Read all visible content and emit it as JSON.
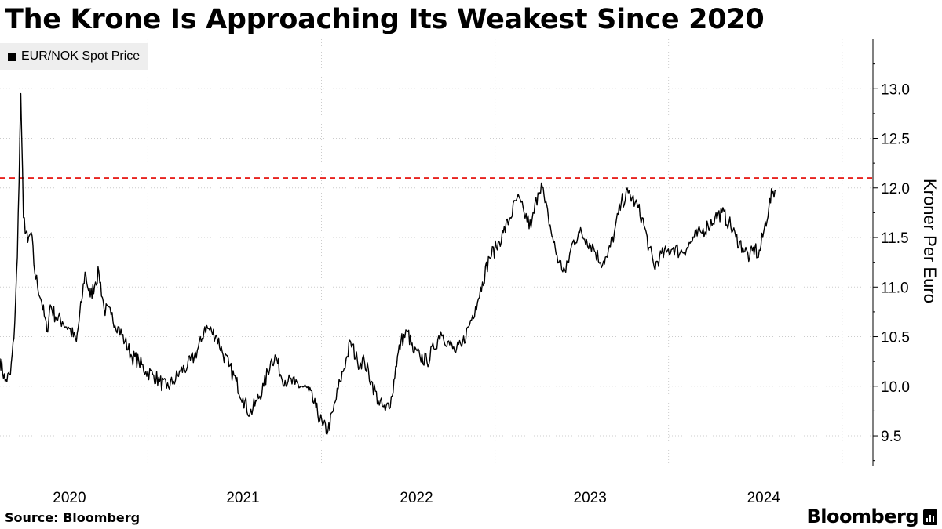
{
  "title": "The Krone Is Approaching Its Weakest Since 2020",
  "legend": "EUR/NOK Spot Price",
  "source": "Source: Bloomberg",
  "brand": "Bloomberg",
  "colors": {
    "line": "#000000",
    "reference": "#e8231f",
    "grid": "#cccccc",
    "legend_bg": "#eeeeee"
  },
  "chart_data": {
    "type": "line",
    "title": "The Krone Is Approaching Its Weakest Since 2020",
    "ylabel": "Kroner Per Euro",
    "xlabel": "",
    "ylim": [
      9.2,
      13.5
    ],
    "yticks": [
      9.5,
      10.0,
      10.5,
      11.0,
      11.5,
      12.0,
      12.5,
      13.0
    ],
    "x_range": [
      2019.6,
      2024.63
    ],
    "xticks": [
      {
        "label": "2020",
        "year_start": 2020,
        "label_pos": 2020.0
      },
      {
        "label": "2021",
        "year_start": 2021,
        "label_pos": 2021.0
      },
      {
        "label": "2022",
        "year_start": 2022,
        "label_pos": 2022.0
      },
      {
        "label": "2023",
        "year_start": 2023,
        "label_pos": 2023.0
      },
      {
        "label": "2024",
        "year_start": 2024,
        "label_pos": 2024.0
      }
    ],
    "reference_line": {
      "value": 12.1,
      "style": "dashed",
      "color": "#e8231f"
    },
    "series": [
      {
        "name": "EUR/NOK Spot Price",
        "points": [
          [
            2019.6,
            10.28
          ],
          [
            2019.63,
            10.05
          ],
          [
            2019.66,
            10.12
          ],
          [
            2019.68,
            10.48
          ],
          [
            2019.7,
            11.3
          ],
          [
            2019.72,
            12.95
          ],
          [
            2019.735,
            11.7
          ],
          [
            2019.76,
            11.45
          ],
          [
            2019.78,
            11.55
          ],
          [
            2019.8,
            11.15
          ],
          [
            2019.84,
            10.85
          ],
          [
            2019.87,
            10.55
          ],
          [
            2019.89,
            10.82
          ],
          [
            2019.92,
            10.7
          ],
          [
            2019.96,
            10.65
          ],
          [
            2020.0,
            10.58
          ],
          [
            2020.04,
            10.45
          ],
          [
            2020.07,
            10.85
          ],
          [
            2020.09,
            11.15
          ],
          [
            2020.12,
            10.9
          ],
          [
            2020.15,
            11.05
          ],
          [
            2020.17,
            11.15
          ],
          [
            2020.2,
            10.78
          ],
          [
            2020.24,
            10.72
          ],
          [
            2020.28,
            10.6
          ],
          [
            2020.32,
            10.45
          ],
          [
            2020.36,
            10.3
          ],
          [
            2020.4,
            10.25
          ],
          [
            2020.44,
            10.15
          ],
          [
            2020.48,
            10.12
          ],
          [
            2020.52,
            10.05
          ],
          [
            2020.56,
            9.98
          ],
          [
            2020.6,
            10.05
          ],
          [
            2020.64,
            10.15
          ],
          [
            2020.68,
            10.2
          ],
          [
            2020.72,
            10.3
          ],
          [
            2020.76,
            10.45
          ],
          [
            2020.78,
            10.6
          ],
          [
            2020.82,
            10.55
          ],
          [
            2020.85,
            10.5
          ],
          [
            2020.88,
            10.35
          ],
          [
            2020.92,
            10.2
          ],
          [
            2020.96,
            10.05
          ],
          [
            2021.0,
            9.88
          ],
          [
            2021.04,
            9.72
          ],
          [
            2021.08,
            9.85
          ],
          [
            2021.12,
            10.0
          ],
          [
            2021.16,
            10.25
          ],
          [
            2021.19,
            10.3
          ],
          [
            2021.22,
            10.1
          ],
          [
            2021.26,
            10.05
          ],
          [
            2021.3,
            10.02
          ],
          [
            2021.34,
            10.0
          ],
          [
            2021.38,
            9.95
          ],
          [
            2021.42,
            9.78
          ],
          [
            2021.46,
            9.6
          ],
          [
            2021.49,
            9.55
          ],
          [
            2021.52,
            9.75
          ],
          [
            2021.56,
            10.05
          ],
          [
            2021.6,
            10.3
          ],
          [
            2021.62,
            10.45
          ],
          [
            2021.66,
            10.25
          ],
          [
            2021.7,
            10.25
          ],
          [
            2021.74,
            10.05
          ],
          [
            2021.78,
            9.85
          ],
          [
            2021.82,
            9.75
          ],
          [
            2021.86,
            9.9
          ],
          [
            2021.88,
            10.2
          ],
          [
            2021.91,
            10.45
          ],
          [
            2021.95,
            10.55
          ],
          [
            2021.98,
            10.35
          ],
          [
            2022.02,
            10.3
          ],
          [
            2022.06,
            10.25
          ],
          [
            2022.1,
            10.38
          ],
          [
            2022.14,
            10.55
          ],
          [
            2022.18,
            10.45
          ],
          [
            2022.22,
            10.35
          ],
          [
            2022.26,
            10.4
          ],
          [
            2022.3,
            10.6
          ],
          [
            2022.34,
            10.8
          ],
          [
            2022.38,
            11.05
          ],
          [
            2022.42,
            11.3
          ],
          [
            2022.46,
            11.4
          ],
          [
            2022.5,
            11.55
          ],
          [
            2022.54,
            11.7
          ],
          [
            2022.58,
            11.9
          ],
          [
            2022.62,
            11.75
          ],
          [
            2022.66,
            11.6
          ],
          [
            2022.7,
            11.95
          ],
          [
            2022.72,
            12.05
          ],
          [
            2022.74,
            11.85
          ],
          [
            2022.76,
            11.7
          ],
          [
            2022.79,
            11.45
          ],
          [
            2022.82,
            11.25
          ],
          [
            2022.86,
            11.15
          ],
          [
            2022.9,
            11.45
          ],
          [
            2022.94,
            11.55
          ],
          [
            2022.98,
            11.48
          ],
          [
            2023.02,
            11.4
          ],
          [
            2023.06,
            11.25
          ],
          [
            2023.1,
            11.3
          ],
          [
            2023.14,
            11.55
          ],
          [
            2023.18,
            11.85
          ],
          [
            2023.22,
            11.95
          ],
          [
            2023.26,
            11.85
          ],
          [
            2023.3,
            11.7
          ],
          [
            2023.34,
            11.4
          ],
          [
            2023.37,
            11.2
          ],
          [
            2023.4,
            11.3
          ],
          [
            2023.44,
            11.35
          ],
          [
            2023.48,
            11.4
          ],
          [
            2023.52,
            11.35
          ],
          [
            2023.56,
            11.4
          ],
          [
            2023.6,
            11.5
          ],
          [
            2023.64,
            11.55
          ],
          [
            2023.68,
            11.62
          ],
          [
            2023.72,
            11.7
          ],
          [
            2023.76,
            11.75
          ],
          [
            2023.8,
            11.65
          ],
          [
            2023.84,
            11.5
          ],
          [
            2023.88,
            11.4
          ],
          [
            2023.92,
            11.3
          ],
          [
            2023.95,
            11.4
          ],
          [
            2023.97,
            11.3
          ],
          [
            2024.0,
            11.55
          ],
          [
            2024.03,
            11.8
          ],
          [
            2024.05,
            11.95
          ],
          [
            2024.07,
            11.98
          ]
        ]
      }
    ]
  }
}
